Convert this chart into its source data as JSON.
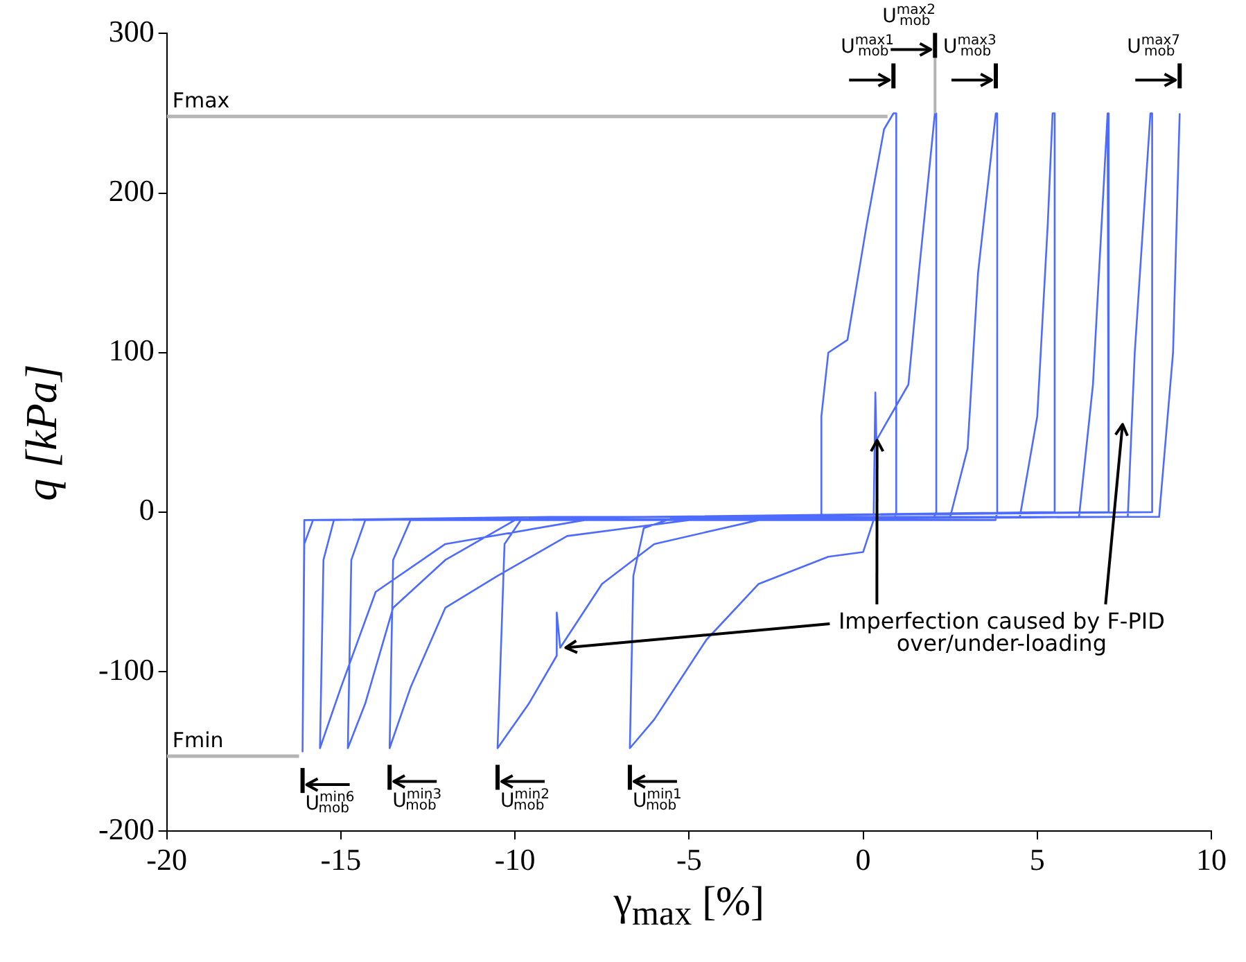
{
  "chart_data": {
    "type": "line",
    "xlabel": "γ$_{max}$ [%]",
    "ylabel": "q [kPa]",
    "xlim": [
      -20,
      10
    ],
    "xticks": [
      -20,
      -15,
      -10,
      -5,
      0,
      5,
      10
    ],
    "ylim": [
      -200,
      300
    ],
    "yticks": [
      -200,
      -100,
      0,
      100,
      200,
      300
    ],
    "grid": false,
    "legend": false,
    "marker": "none",
    "line_style": "solid",
    "series": [
      {
        "color": "#4d6bff",
        "x": [
          -1.2,
          -1.2,
          -1.0,
          -0.45,
          0.1,
          0.6,
          0.87,
          0.95,
          0.95,
          0.9,
          -5.5,
          -6.3,
          -6.6,
          -6.7,
          -6.0,
          -4.5,
          -3,
          -1,
          0,
          0.3,
          0.35,
          0.38,
          1.3,
          1.6,
          2.06,
          2.1,
          2.1,
          2.0,
          -9.8,
          -10.3,
          -10.5,
          -9.6,
          -8.8,
          -8.8,
          -8.7,
          -7.5,
          -6,
          -3,
          2.5,
          3.0,
          3.3,
          3.81,
          3.85,
          3.85,
          3.8,
          -13.0,
          -13.5,
          -13.6,
          -13,
          -12,
          -10.5,
          -8.5,
          -5,
          4.5,
          5.0,
          5.3,
          5.44,
          5.5,
          5.5,
          -14.3,
          -14.7,
          -14.8,
          -14.3,
          -13.5,
          -12,
          -10,
          6.2,
          6.6,
          7.02,
          7.05,
          7.05,
          -15.2,
          -15.5,
          -15.6,
          -15,
          -14,
          -12,
          -8,
          7.6,
          7.8,
          8.25,
          8.3,
          8.3,
          -15.8,
          -16.05,
          -16.1,
          -16.05,
          -9,
          8.5,
          8.9,
          9.09
        ],
        "values": [
          -2,
          60,
          100,
          108,
          180,
          240,
          250,
          250,
          0,
          -4,
          -4,
          -10,
          -40,
          -148,
          -130,
          -80,
          -45,
          -28,
          -25,
          -5,
          75,
          45,
          80,
          150,
          250,
          250,
          0,
          -5,
          -4,
          -20,
          -148,
          -120,
          -90,
          -63,
          -85,
          -45,
          -20,
          -5,
          -3,
          40,
          150,
          250,
          250,
          0,
          -5,
          -5,
          -30,
          -148,
          -110,
          -60,
          -40,
          -15,
          -5,
          -3,
          60,
          180,
          250,
          250,
          0,
          -5,
          -30,
          -148,
          -120,
          -60,
          -30,
          -5,
          -3,
          80,
          250,
          250,
          0,
          -5,
          -30,
          -148,
          -110,
          -50,
          -20,
          -5,
          -3,
          100,
          250,
          250,
          0,
          -5,
          -20,
          -150,
          -5,
          -3,
          -3,
          100,
          250
        ]
      },
      {
        "name": "Fmax",
        "color": "#b4b4b4",
        "x": [
          -20,
          0.7
        ],
        "values": [
          248,
          248
        ]
      },
      {
        "name": "Fmin",
        "color": "#b4b4b4",
        "x": [
          -20,
          -16.2
        ],
        "values": [
          -153,
          -153
        ]
      }
    ],
    "annotations": [
      {
        "text": "U$^{max1}$$_{mob}$",
        "x": 0.87,
        "y": 250
      },
      "U$^{max2}$$_{mob}$",
      {
        "text": "U$^{max3}$$_{mob}$",
        "x": 3.81,
        "y": 250
      },
      {
        "text": "U$^{max7}$$_{mob}$",
        "x": 9.09,
        "y": 250
      },
      {
        "text": "U$^{min6}$$_{mob}$",
        "x": -16.1,
        "y": -150
      },
      {
        "text": "U$^{min3}$$_{mob}$",
        "x": -13.6,
        "y": -148
      },
      {
        "text": "U$^{min2}$$_{mob}$",
        "x": -10.5,
        "y": -148
      },
      {
        "text": "U$^{min1}$$_{mob}$",
        "x": -6.7,
        "y": -148
      },
      {
        "text": "Imperfection caused by F-PID over/under-loading",
        "x": -8.7,
        "y": -85
      }
    ]
  }
}
